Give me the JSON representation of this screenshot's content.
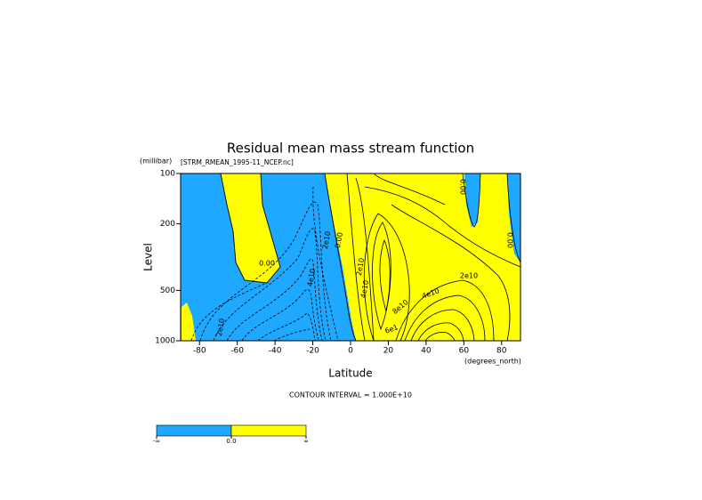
{
  "chart_data": {
    "type": "contour",
    "title": "Residual mean mass stream function",
    "subtitle": "[STRM_RMEAN_1995-11_NCEP.nc]",
    "y_unit": "(millibar)",
    "ylabel": "Level",
    "xlabel": "Latitude",
    "x_unit": "(degrees_north)",
    "note": "CONTOUR INTERVAL = 1.000E+10",
    "xlim": [
      -90,
      90
    ],
    "xticks": [
      -80,
      -60,
      -40,
      -20,
      0,
      20,
      40,
      60,
      80
    ],
    "ylim": [
      1000,
      100
    ],
    "yticks": [
      100,
      200,
      500,
      1000
    ],
    "ylog": true,
    "contour_labels": [
      "0.00",
      "2e10",
      "0.00",
      "4e10",
      "2e10",
      "2e10",
      "4e10",
      "8e10",
      "2e10",
      "4e10",
      "0.00",
      "0.00",
      "6e1"
    ],
    "colorbar": {
      "colors": [
        "#1ea8ff",
        "#ffff00"
      ],
      "labels": [
        "-∞",
        "0.0",
        "∞"
      ]
    }
  }
}
